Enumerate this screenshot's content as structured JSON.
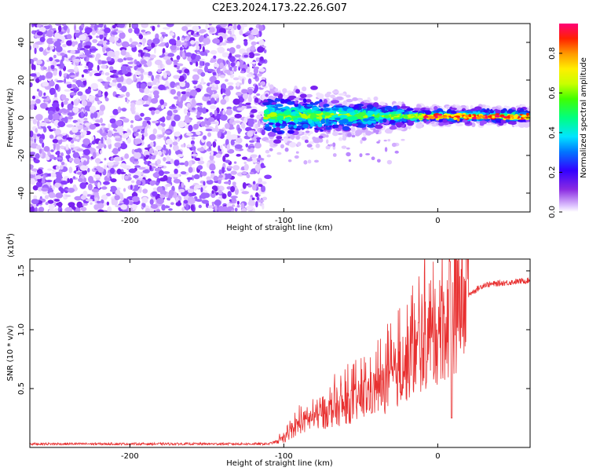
{
  "figure_title": "C2E3.2024.173.22.26.G07",
  "colorbar": {
    "label": "Normalized spectral amplitude",
    "ticks": [
      "0.0",
      "0.2",
      "0.4",
      "0.6",
      "0.8"
    ],
    "tick_values": [
      0.0,
      0.2,
      0.4,
      0.6,
      0.8
    ],
    "range": [
      0,
      0.95
    ]
  },
  "chart_data": [
    {
      "type": "heatmap",
      "xlabel": "Height of straight line (km)",
      "ylabel": "Frequency (Hz)",
      "xlim": [
        -265,
        60
      ],
      "ylim": [
        -50,
        50
      ],
      "x_ticks": [
        "-200",
        "-100",
        "0"
      ],
      "x_tick_values": [
        -200,
        -100,
        0
      ],
      "y_ticks": [
        "-40",
        "-20",
        "0",
        "20",
        "40"
      ],
      "y_tick_values": [
        -40,
        -20,
        0,
        20,
        40
      ],
      "noise_region_x": [
        -265,
        -112
      ],
      "signal_start_x": -112,
      "colormap": "rainbow (purple → red)"
    },
    {
      "type": "line",
      "xlabel": "Height of straight line (km)",
      "ylabel": "SNR (10 * v/v)",
      "multiplier": "(x10",
      "multiplier_exp": "4",
      "multiplier_close": ")",
      "xlim": [
        -265,
        60
      ],
      "ylim": [
        0,
        1.6
      ],
      "x_ticks": [
        "-200",
        "-100",
        "0"
      ],
      "x_tick_values": [
        -200,
        -100,
        0
      ],
      "y_ticks": [
        "0.5",
        "1.0",
        "1.5"
      ],
      "y_tick_values": [
        0.5,
        1.0,
        1.5
      ],
      "color": "#e83030",
      "series_profile": [
        {
          "x": -265,
          "y": 0.03
        },
        {
          "x": -110,
          "y": 0.03
        },
        {
          "x": -100,
          "y": 0.07
        },
        {
          "x": -90,
          "y": 0.2
        },
        {
          "x": -70,
          "y": 0.3
        },
        {
          "x": -50,
          "y": 0.4
        },
        {
          "x": -30,
          "y": 0.55
        },
        {
          "x": -20,
          "y": 0.7
        },
        {
          "x": -10,
          "y": 0.85
        },
        {
          "x": 0,
          "y": 0.95
        },
        {
          "x": 10,
          "y": 1.1
        },
        {
          "x": 20,
          "y": 1.3
        },
        {
          "x": 30,
          "y": 1.38
        },
        {
          "x": 60,
          "y": 1.42
        }
      ],
      "features": [
        {
          "x": 8,
          "y": 1.58,
          "note": "spike"
        },
        {
          "x": 8,
          "y": 0.25,
          "note": "dip"
        }
      ]
    }
  ]
}
